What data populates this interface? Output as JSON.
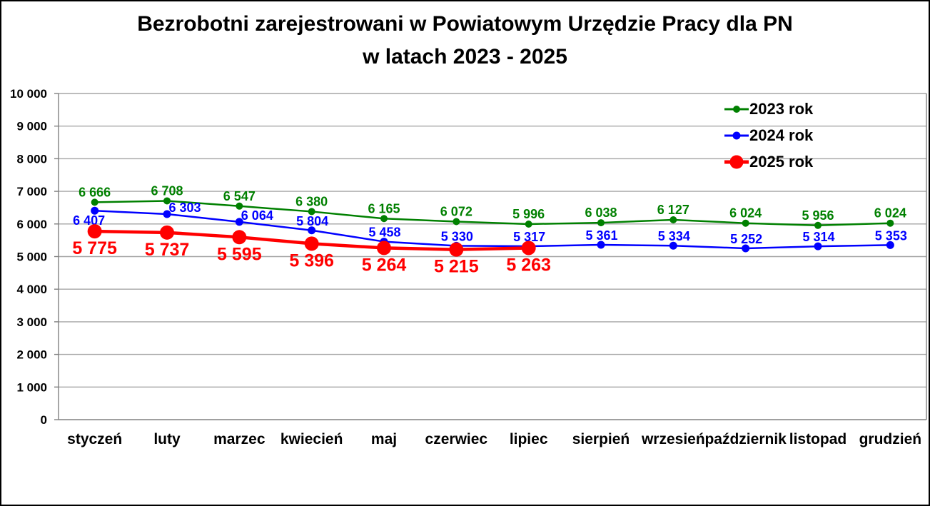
{
  "chart_data": {
    "type": "line",
    "title": "Bezrobotni zarejestrowani w Powiatowym Urzędzie Pracy dla PN w latach 2023 - 2025",
    "title_lines": [
      "Bezrobotni zarejestrowani w Powiatowym Urzędzie Pracy dla PN",
      "w latach 2023 - 2025"
    ],
    "categories": [
      "styczeń",
      "luty",
      "marzec",
      "kwiecień",
      "maj",
      "czerwiec",
      "lipiec",
      "sierpień",
      "wrzesień",
      "październik",
      "listopad",
      "grudzień"
    ],
    "series": [
      {
        "name": "2023 rok",
        "color": "#008000",
        "values": [
          6666,
          6708,
          6547,
          6380,
          6165,
          6072,
          5996,
          6038,
          6127,
          6024,
          5956,
          6024
        ],
        "marker_radius": 5,
        "line_width": 2.5,
        "label_font_size": 18,
        "label_default_offset": [
          0,
          -8
        ],
        "label_offsets": {}
      },
      {
        "name": "2024 rok",
        "color": "#0000FF",
        "values": [
          6407,
          6303,
          6064,
          5804,
          5458,
          5330,
          5317,
          5361,
          5334,
          5252,
          5314,
          5353
        ],
        "marker_radius": 5.5,
        "line_width": 2.5,
        "label_font_size": 18,
        "label_default_offset": [
          1,
          -7
        ],
        "label_offsets": {
          "0": [
            -8,
            20
          ],
          "1": [
            25,
            -3
          ],
          "2": [
            25,
            -3
          ]
        }
      },
      {
        "name": "2025 rok",
        "color": "#FF0000",
        "values": [
          5775,
          5737,
          5595,
          5396,
          5264,
          5215,
          5263
        ],
        "marker_radius": 10,
        "line_width": 4.5,
        "label_font_size": 25,
        "label_default_offset": [
          0,
          32
        ],
        "label_offsets": {}
      }
    ],
    "ylim": [
      0,
      10000
    ],
    "ytick_step": 1000,
    "ytick_labels": [
      "0",
      "1 000",
      "2 000",
      "3 000",
      "4 000",
      "5 000",
      "6 000",
      "7 000",
      "8 000",
      "9 000",
      "10 000"
    ],
    "grid": true,
    "legend_position": "top-right",
    "xlabel": "",
    "ylabel": "",
    "axis_color": "#808080",
    "gridline_color": "#A6A6A6",
    "text_color": "#000000"
  }
}
